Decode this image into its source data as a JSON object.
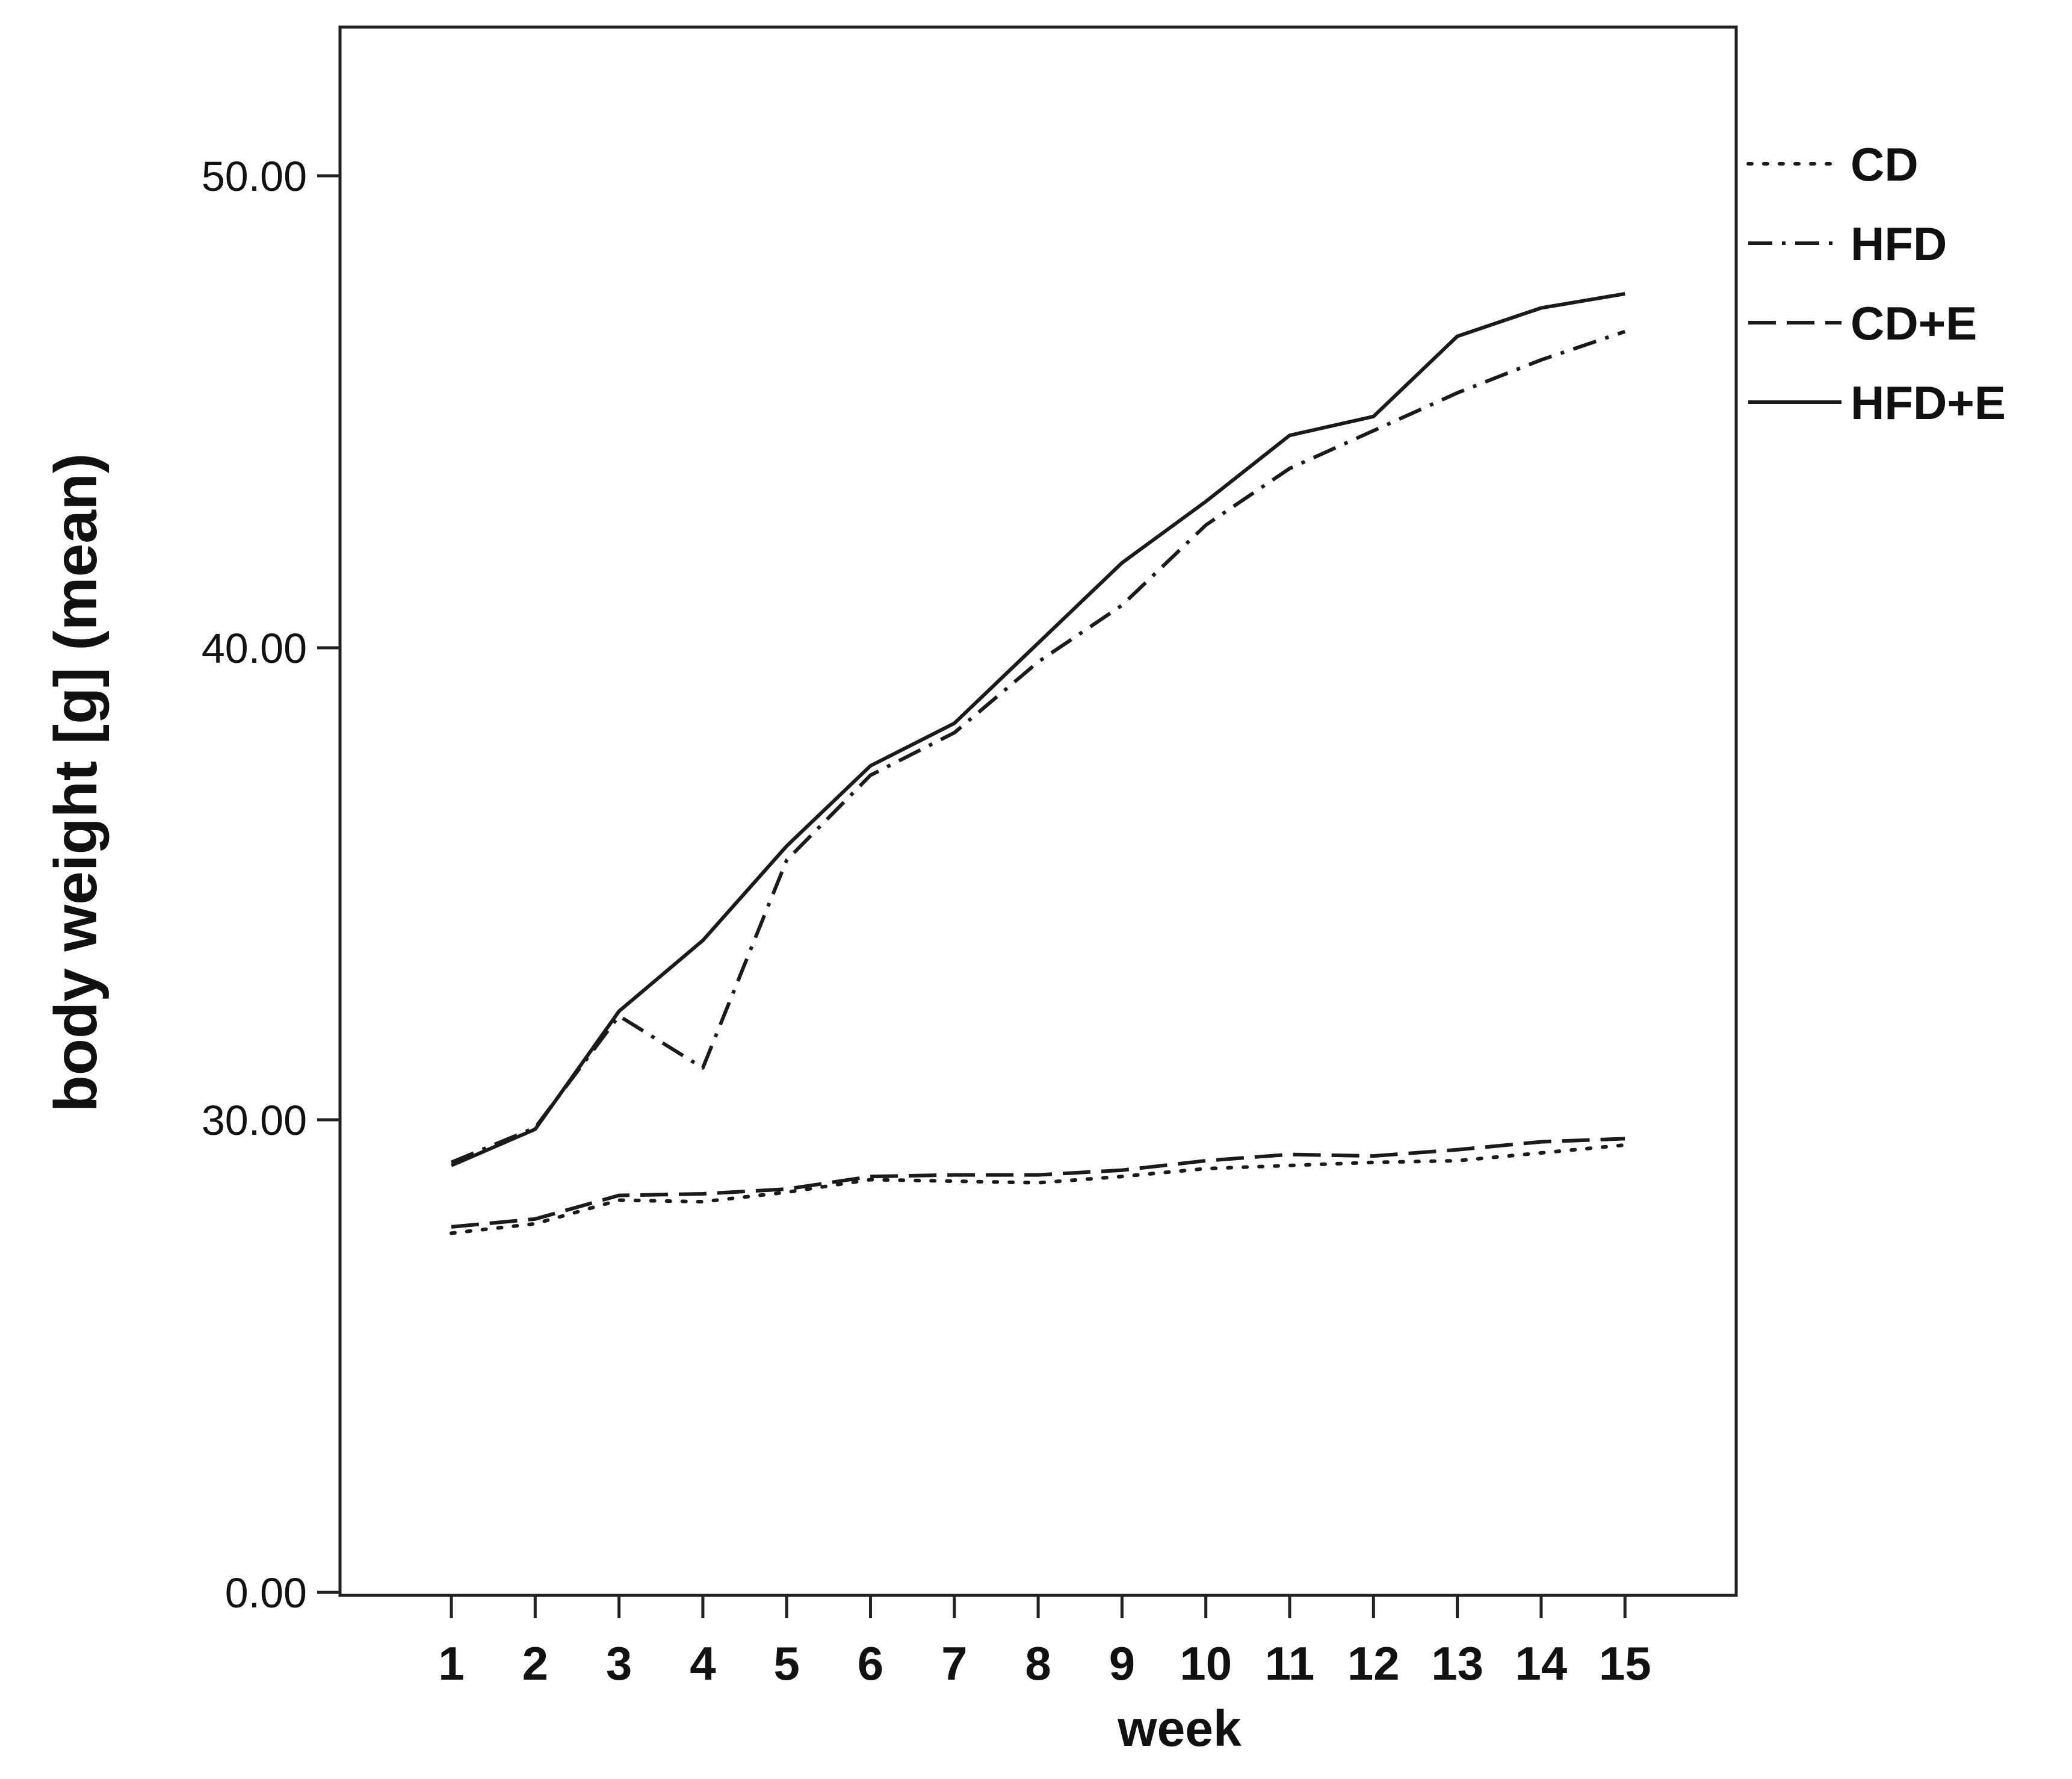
{
  "chart_data": {
    "type": "line",
    "title": "",
    "xlabel": "week",
    "ylabel": "body weight [g] (mean)",
    "x": [
      1,
      2,
      3,
      4,
      5,
      6,
      7,
      8,
      9,
      10,
      11,
      12,
      13,
      14,
      15
    ],
    "x_tick_labels": [
      "1",
      "2",
      "3",
      "4",
      "5",
      "6",
      "7",
      "8",
      "9",
      "10",
      "11",
      "12",
      "13",
      "14",
      "15"
    ],
    "y_tick_labels": [
      "0.00",
      "30.00",
      "40.00",
      "50.00"
    ],
    "y_ticks": [
      0,
      30,
      40,
      50
    ],
    "y_axis_break": "scale jumps from 0.00 to 30.00 (broken axis; lower band spans 0–30, upper bands are 10 g each)",
    "ylim": [
      0,
      53
    ],
    "grid": false,
    "legend_position": "right",
    "series": [
      {
        "name": "CD",
        "style": "dotted",
        "values": [
          22.8,
          23.4,
          24.9,
          24.8,
          25.4,
          26.2,
          26.1,
          26.0,
          26.4,
          26.9,
          27.1,
          27.3,
          27.4,
          27.9,
          28.4
        ]
      },
      {
        "name": "HFD",
        "style": "dash-dot",
        "values": [
          27.3,
          29.5,
          32.2,
          31.1,
          35.5,
          37.3,
          38.2,
          39.7,
          40.9,
          42.6,
          43.8,
          44.6,
          45.4,
          46.1,
          46.7
        ]
      },
      {
        "name": "CD+E",
        "style": "dashed",
        "values": [
          23.2,
          23.7,
          25.2,
          25.3,
          25.6,
          26.4,
          26.5,
          26.5,
          26.8,
          27.4,
          27.8,
          27.7,
          28.1,
          28.6,
          28.8
        ]
      },
      {
        "name": "HFD+E",
        "style": "solid",
        "values": [
          27.1,
          29.4,
          32.3,
          33.8,
          35.8,
          37.5,
          38.4,
          40.1,
          41.8,
          43.1,
          44.5,
          44.9,
          46.6,
          47.2,
          47.5
        ]
      }
    ]
  }
}
